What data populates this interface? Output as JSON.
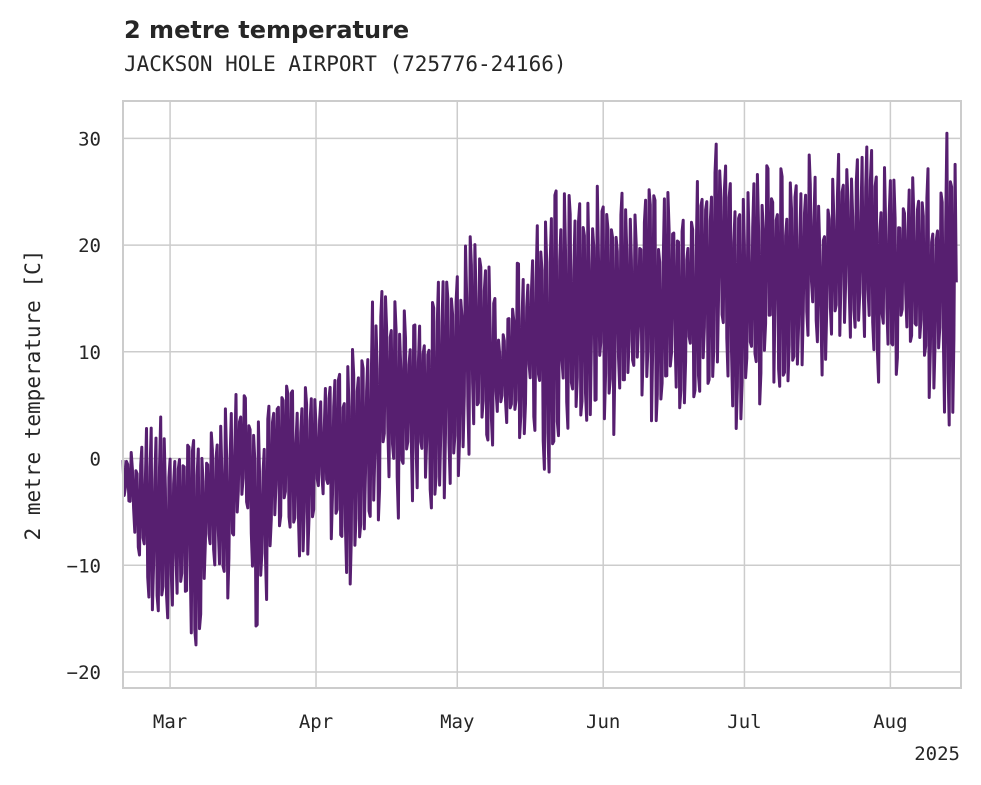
{
  "chart_data": {
    "type": "line",
    "title": "2 metre temperature",
    "subtitle": "JACKSON HOLE AIRPORT (725776-24166)",
    "xlabel": "",
    "ylabel": "2 metre temperature [C]",
    "xlim": [
      "2025-02-19",
      "2025-08-16"
    ],
    "ylim": [
      -21.5,
      33.5
    ],
    "x_ticks": [
      {
        "date": "2025-03-01",
        "label": "Mar"
      },
      {
        "date": "2025-04-01",
        "label": "Apr"
      },
      {
        "date": "2025-05-01",
        "label": "May"
      },
      {
        "date": "2025-06-01",
        "label": "Jun"
      },
      {
        "date": "2025-07-01",
        "label": "Jul"
      },
      {
        "date": "2025-08-01",
        "label": "Aug"
      }
    ],
    "x_offset_label": "2025",
    "y_ticks": [
      -20,
      -10,
      0,
      10,
      20,
      30
    ],
    "grid": true,
    "series": [
      {
        "color": "#571f70",
        "x": [
          "2025-02-19",
          "2025-02-21",
          "2025-02-23",
          "2025-02-25",
          "2025-02-27",
          "2025-03-01",
          "2025-03-03",
          "2025-03-05",
          "2025-03-07",
          "2025-03-09",
          "2025-03-11",
          "2025-03-13",
          "2025-03-15",
          "2025-03-17",
          "2025-03-19",
          "2025-03-21",
          "2025-03-23",
          "2025-03-25",
          "2025-03-27",
          "2025-03-29",
          "2025-03-31",
          "2025-04-02",
          "2025-04-04",
          "2025-04-06",
          "2025-04-08",
          "2025-04-10",
          "2025-04-12",
          "2025-04-14",
          "2025-04-16",
          "2025-04-18",
          "2025-04-20",
          "2025-04-22",
          "2025-04-24",
          "2025-04-26",
          "2025-04-28",
          "2025-04-30",
          "2025-05-02",
          "2025-05-04",
          "2025-05-06",
          "2025-05-08",
          "2025-05-10",
          "2025-05-12",
          "2025-05-14",
          "2025-05-16",
          "2025-05-18",
          "2025-05-20",
          "2025-05-22",
          "2025-05-24",
          "2025-05-26",
          "2025-05-28",
          "2025-05-30",
          "2025-06-01",
          "2025-06-03",
          "2025-06-05",
          "2025-06-07",
          "2025-06-09",
          "2025-06-11",
          "2025-06-13",
          "2025-06-15",
          "2025-06-17",
          "2025-06-19",
          "2025-06-21",
          "2025-06-23",
          "2025-06-25",
          "2025-06-27",
          "2025-06-29",
          "2025-07-01",
          "2025-07-03",
          "2025-07-05",
          "2025-07-07",
          "2025-07-09",
          "2025-07-11",
          "2025-07-13",
          "2025-07-15",
          "2025-07-17",
          "2025-07-19",
          "2025-07-21",
          "2025-07-23",
          "2025-07-25",
          "2025-07-27",
          "2025-07-29",
          "2025-07-31",
          "2025-08-02",
          "2025-08-04",
          "2025-08-06",
          "2025-08-08",
          "2025-08-10",
          "2025-08-12",
          "2025-08-14",
          "2025-08-15"
        ],
        "min": [
          -4,
          -7,
          -11,
          -17,
          -15,
          -17,
          -12,
          -16,
          -18,
          -10,
          -12,
          -16,
          -8,
          -5,
          -19,
          -15,
          -8,
          -6,
          -9,
          -12,
          -6,
          -3,
          -9,
          -11,
          -12,
          -10,
          -8,
          -6,
          -5,
          -7,
          -4,
          -5,
          -3,
          -6,
          -4,
          -3,
          -2,
          -1,
          0,
          1,
          2,
          3,
          1,
          3,
          2,
          -3,
          1,
          2,
          1,
          3,
          4,
          3,
          2,
          3,
          6,
          5,
          3,
          4,
          5,
          4,
          6,
          5,
          7,
          8,
          5,
          1,
          6,
          3,
          5,
          7,
          5,
          6,
          8,
          10,
          7,
          10,
          9,
          11,
          8,
          12,
          6,
          9,
          7,
          10,
          11,
          8,
          3,
          5,
          2,
          7
        ],
        "max": [
          1,
          1,
          2,
          5,
          5,
          3,
          3,
          4,
          3,
          2,
          4,
          5,
          7,
          6,
          3,
          5,
          8,
          9,
          7,
          8,
          6,
          6,
          8,
          10,
          11,
          12,
          14,
          16,
          18,
          17,
          13,
          14,
          15,
          16,
          18,
          20,
          19,
          24,
          22,
          17,
          14,
          17,
          19,
          20,
          22,
          24,
          26,
          25,
          24,
          24,
          26,
          26,
          25,
          26,
          25,
          27,
          26,
          25,
          27,
          26,
          25,
          26,
          28,
          30,
          28,
          29,
          26,
          27,
          29,
          30,
          28,
          28,
          27,
          29,
          26,
          28,
          30,
          30,
          29,
          31,
          28,
          28,
          29,
          26,
          27,
          30,
          28,
          30,
          31,
          26
        ]
      }
    ]
  }
}
